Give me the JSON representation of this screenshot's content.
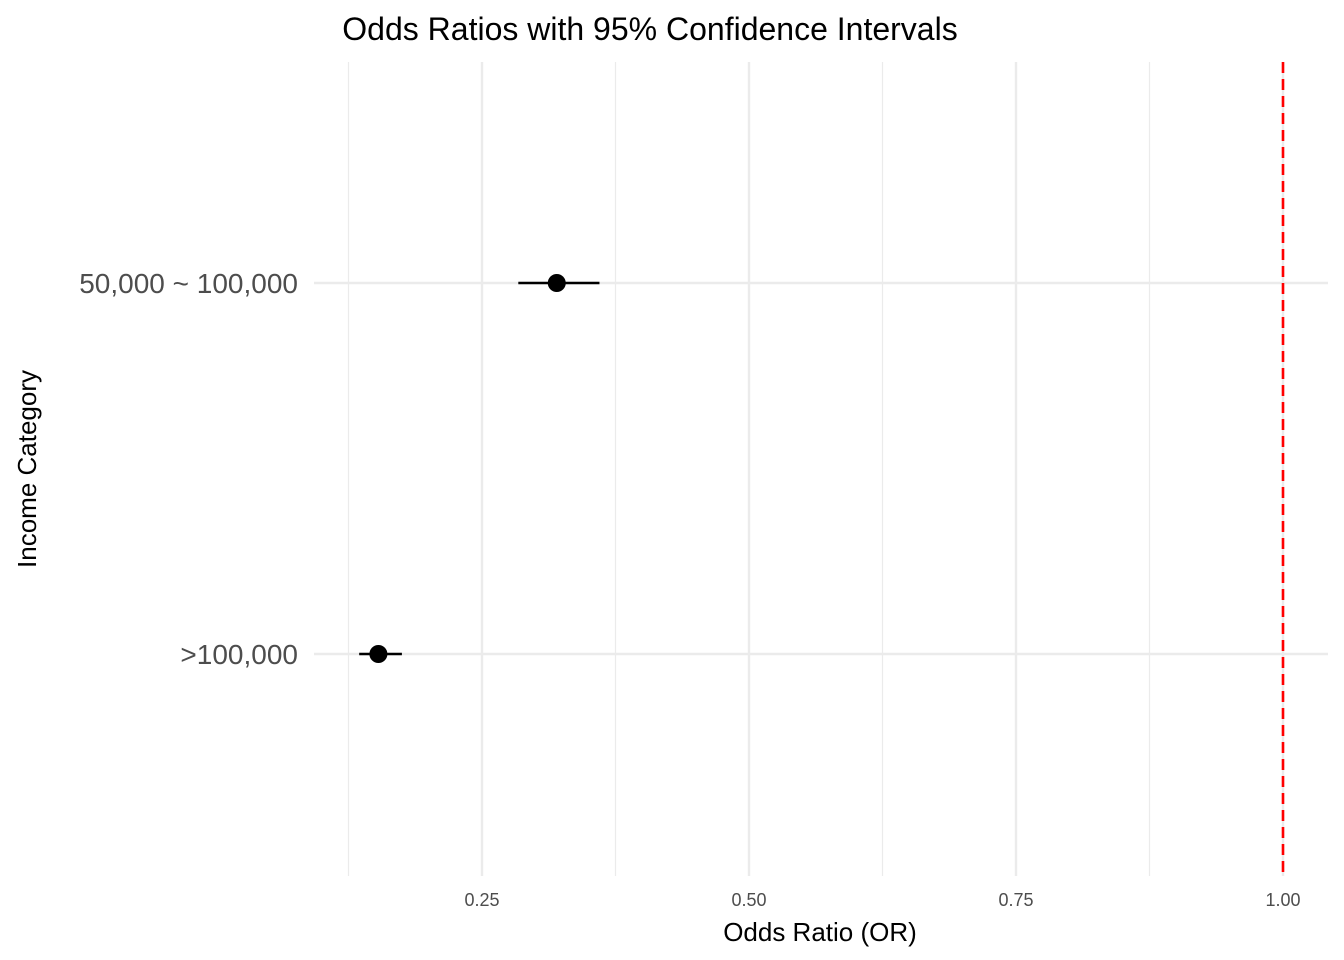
{
  "chart_data": {
    "type": "scatter",
    "title": "Odds Ratios with 95% Confidence Intervals",
    "xlabel": "Odds Ratio (OR)",
    "ylabel": "Income Category",
    "xlim": [
      0.125,
      1.0
    ],
    "x_ticks": [
      "0.25",
      "0.50",
      "0.75",
      "1.00"
    ],
    "x_tick_values": [
      0.25,
      0.5,
      0.75,
      1.0
    ],
    "x_minor_values": [
      0.125,
      0.375,
      0.625,
      0.875
    ],
    "categories": [
      "50,000 ~ 100,000",
      ">100,000"
    ],
    "series": [
      {
        "points": [
          {
            "category": "50,000 ~ 100,000",
            "or": 0.32,
            "ci_low": 0.284,
            "ci_high": 0.36
          },
          {
            "category": ">100,000",
            "or": 0.153,
            "ci_low": 0.135,
            "ci_high": 0.175
          }
        ]
      }
    ],
    "reference_line": {
      "value": 1.0,
      "color": "#ff0000",
      "style": "dashed"
    },
    "grid": true,
    "legend": "none",
    "colors": {
      "point": "#000000",
      "errorbar": "#000000",
      "grid": "#ebebeb",
      "reference": "#ff0000"
    }
  }
}
